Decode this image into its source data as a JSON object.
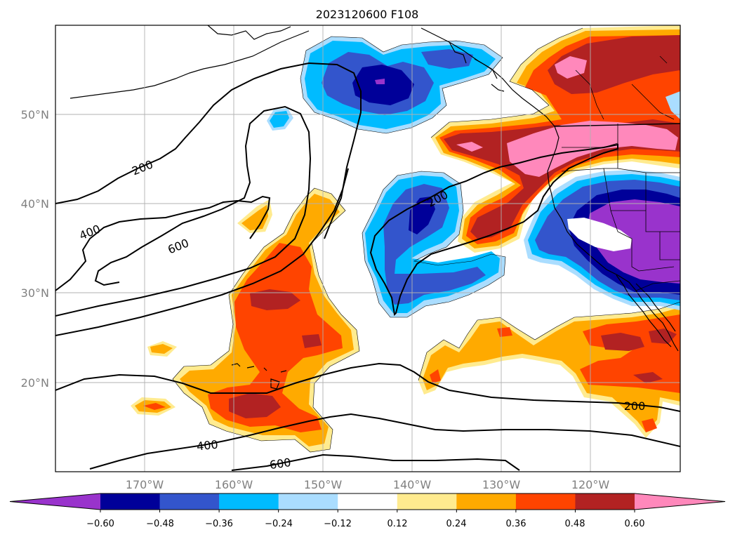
{
  "title": "2023120600 F108",
  "map": {
    "lat_ticks": [
      "50°N",
      "40°N",
      "30°N",
      "20°N"
    ],
    "lon_ticks": [
      "170°W",
      "160°W",
      "150°W",
      "140°W",
      "130°W",
      "120°W"
    ],
    "gridlines": true
  },
  "contours": {
    "labels": [
      "200",
      "400",
      "600",
      "200",
      "400",
      "600",
      "200"
    ]
  },
  "colorbar": {
    "ticks": [
      "−0.60",
      "−0.48",
      "−0.36",
      "−0.24",
      "−0.12",
      "0.12",
      "0.24",
      "0.36",
      "0.48",
      "0.60"
    ],
    "colors": [
      "#9933cc",
      "#000099",
      "#3355cc",
      "#00bbff",
      "#aaddff",
      "#ffffff",
      "#ffeb8f",
      "#ffaa00",
      "#ff4400",
      "#b22222",
      "#ff88bb"
    ],
    "extend": "both"
  }
}
